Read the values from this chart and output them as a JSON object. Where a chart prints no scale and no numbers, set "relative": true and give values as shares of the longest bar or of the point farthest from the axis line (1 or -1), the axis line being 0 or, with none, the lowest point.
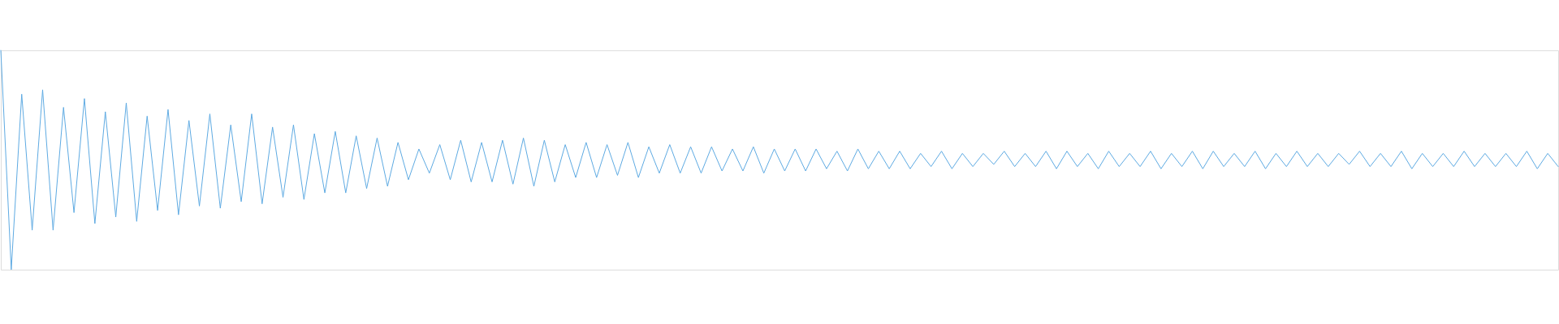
{
  "chart_data": {
    "type": "line",
    "relative": true,
    "color": "#5daae2",
    "categories": [
      null,
      null,
      null,
      null,
      null,
      null,
      null,
      null,
      null,
      null,
      null,
      null,
      null,
      null,
      null,
      null,
      null,
      null,
      null,
      null,
      null,
      null,
      null,
      null,
      null,
      null,
      null,
      null,
      null,
      null,
      null,
      null,
      null,
      null,
      null,
      null,
      null,
      null,
      null,
      null,
      null,
      null,
      null,
      null,
      null,
      null,
      null,
      null,
      null,
      null,
      null,
      null,
      null,
      null,
      null,
      null,
      null,
      null,
      null,
      null,
      null,
      null,
      null,
      null,
      null,
      null,
      null,
      null,
      null,
      null,
      null,
      null,
      null,
      null,
      null,
      null,
      null,
      null,
      null,
      null,
      null,
      null,
      null,
      null,
      null,
      null,
      null,
      null,
      null,
      null,
      null,
      null,
      null,
      null,
      null,
      null,
      null,
      null,
      null,
      null,
      null,
      null,
      null,
      null,
      null,
      null,
      null,
      null,
      null,
      null,
      null,
      null,
      null,
      null,
      null,
      null,
      null,
      null,
      null,
      null,
      null,
      null,
      null,
      null,
      null,
      null,
      null,
      null,
      null,
      null,
      null,
      null,
      null,
      null,
      null,
      null,
      null,
      null,
      null,
      null,
      null,
      null,
      null,
      null,
      null,
      null,
      null,
      null,
      null,
      null
    ],
    "values": [
      1.0,
      0.0,
      0.8,
      0.18,
      0.82,
      0.18,
      0.74,
      0.26,
      0.78,
      0.21,
      0.72,
      0.24,
      0.76,
      0.22,
      0.7,
      0.27,
      0.73,
      0.25,
      0.68,
      0.29,
      0.71,
      0.28,
      0.66,
      0.31,
      0.71,
      0.3,
      0.65,
      0.33,
      0.66,
      0.32,
      0.62,
      0.35,
      0.63,
      0.35,
      0.61,
      0.37,
      0.6,
      0.38,
      0.58,
      0.41,
      0.55,
      0.44,
      0.57,
      0.41,
      0.59,
      0.4,
      0.58,
      0.4,
      0.59,
      0.39,
      0.6,
      0.38,
      0.59,
      0.4,
      0.57,
      0.42,
      0.58,
      0.42,
      0.57,
      0.43,
      0.58,
      0.42,
      0.56,
      0.44,
      0.57,
      0.44,
      0.56,
      0.44,
      0.56,
      0.45,
      0.55,
      0.45,
      0.56,
      0.44,
      0.55,
      0.45,
      0.55,
      0.45,
      0.55,
      0.46,
      0.54,
      0.45,
      0.55,
      0.46,
      0.54,
      0.46,
      0.54,
      0.46,
      0.53,
      0.47,
      0.54,
      0.46,
      0.53,
      0.47,
      0.53,
      0.48,
      0.54,
      0.47,
      0.53,
      0.47,
      0.54,
      0.46,
      0.54,
      0.47,
      0.53,
      0.46,
      0.54,
      0.47,
      0.53,
      0.47,
      0.54,
      0.46,
      0.53,
      0.47,
      0.54,
      0.46,
      0.54,
      0.47,
      0.53,
      0.47,
      0.54,
      0.46,
      0.53,
      0.47,
      0.54,
      0.47,
      0.53,
      0.47,
      0.53,
      0.48,
      0.54,
      0.47,
      0.53,
      0.47,
      0.54,
      0.46,
      0.53,
      0.47,
      0.53,
      0.47,
      0.54,
      0.47,
      0.53,
      0.47,
      0.53,
      0.47,
      0.54,
      0.46,
      0.53,
      0.47
    ]
  }
}
